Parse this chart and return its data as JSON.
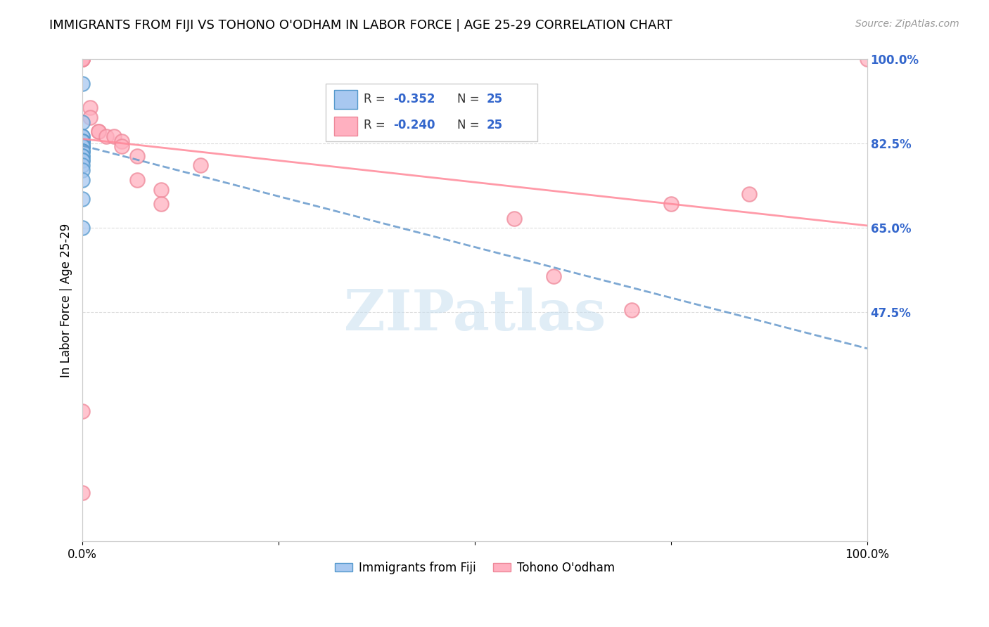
{
  "title": "IMMIGRANTS FROM FIJI VS TOHONO O'ODHAM IN LABOR FORCE | AGE 25-29 CORRELATION CHART",
  "source": "Source: ZipAtlas.com",
  "ylabel": "In Labor Force | Age 25-29",
  "ylabel_right_labels": [
    "100.0%",
    "82.5%",
    "65.0%",
    "47.5%"
  ],
  "ylabel_right_values": [
    1.0,
    0.825,
    0.65,
    0.475
  ],
  "xmin": 0.0,
  "xmax": 1.0,
  "ymin": 0.0,
  "ymax": 1.0,
  "fiji_color": "#a8c8f0",
  "fiji_edge_color": "#5599cc",
  "tohono_color": "#ffb0c0",
  "tohono_edge_color": "#ee8899",
  "fiji_R": "-0.352",
  "fiji_N": "25",
  "tohono_R": "-0.240",
  "tohono_N": "25",
  "fiji_trend_color": "#6699cc",
  "tohono_trend_color": "#ff8899",
  "watermark": "ZIPatlas",
  "watermark_color": "#c8dff0",
  "fiji_points_x": [
    0.0,
    0.0,
    0.0,
    0.0,
    0.0,
    0.0,
    0.0,
    0.0,
    0.0,
    0.0,
    0.0,
    0.0,
    0.0,
    0.0,
    0.0,
    0.0,
    0.0,
    0.0,
    0.0,
    0.0,
    0.0,
    0.0,
    0.0,
    0.0,
    0.0
  ],
  "fiji_points_y": [
    0.95,
    0.87,
    0.84,
    0.84,
    0.83,
    0.83,
    0.83,
    0.83,
    0.82,
    0.82,
    0.82,
    0.82,
    0.82,
    0.81,
    0.81,
    0.81,
    0.8,
    0.8,
    0.79,
    0.79,
    0.78,
    0.77,
    0.75,
    0.71,
    0.65
  ],
  "tohono_points_x": [
    0.0,
    0.0,
    0.0,
    0.0,
    0.01,
    0.01,
    0.02,
    0.02,
    0.03,
    0.04,
    0.05,
    0.05,
    0.07,
    0.07,
    0.1,
    0.1,
    0.15,
    0.55,
    0.6,
    0.7,
    0.75,
    0.85,
    1.0,
    0.0,
    0.0
  ],
  "tohono_points_y": [
    1.0,
    1.0,
    1.0,
    1.0,
    0.9,
    0.88,
    0.85,
    0.85,
    0.84,
    0.84,
    0.83,
    0.82,
    0.8,
    0.75,
    0.73,
    0.7,
    0.78,
    0.67,
    0.55,
    0.48,
    0.7,
    0.72,
    1.0,
    0.27,
    0.1
  ],
  "fiji_trend_x": [
    0.0,
    1.0
  ],
  "fiji_trend_y": [
    0.821,
    0.4
  ],
  "tohono_trend_x": [
    0.0,
    1.0
  ],
  "tohono_trend_y": [
    0.835,
    0.655
  ]
}
